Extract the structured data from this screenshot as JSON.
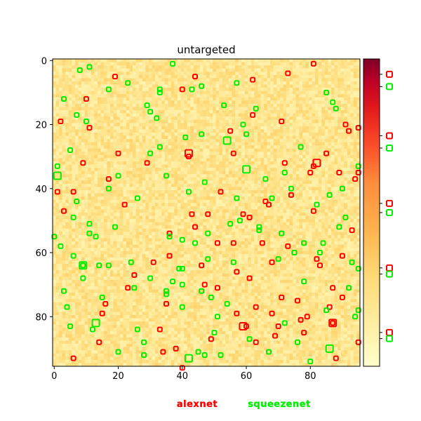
{
  "chart_data": {
    "type": "heatmap",
    "title": "untargeted",
    "grid_size": 96,
    "xlim": [
      0,
      96
    ],
    "ylim": [
      96,
      0
    ],
    "x_ticks": [
      0,
      20,
      40,
      60,
      80
    ],
    "y_ticks": [
      0,
      20,
      40,
      60,
      80
    ],
    "background_colormap": "YlOrRd",
    "grid": false,
    "colorbar": {
      "ticks_visible": true,
      "tick_labels_visible": false
    },
    "series": [
      {
        "name": "alexnet",
        "color": "#ff0000",
        "markers": [
          [
            2,
            19
          ],
          [
            1,
            41
          ],
          [
            6,
            41
          ],
          [
            3,
            47
          ],
          [
            9,
            32
          ],
          [
            10,
            12
          ],
          [
            11,
            21
          ],
          [
            6,
            93
          ],
          [
            15,
            79
          ],
          [
            16,
            76
          ],
          [
            17,
            37
          ],
          [
            19,
            5
          ],
          [
            20,
            29
          ],
          [
            22,
            45
          ],
          [
            23,
            71
          ],
          [
            25,
            67
          ],
          [
            29,
            32
          ],
          [
            31,
            63
          ],
          [
            33,
            84
          ],
          [
            34,
            91
          ],
          [
            35,
            76
          ],
          [
            36,
            61
          ],
          [
            40,
            9
          ],
          [
            42,
            30
          ],
          [
            43,
            48
          ],
          [
            44,
            52
          ],
          [
            46,
            64
          ],
          [
            47,
            70
          ],
          [
            48,
            48
          ],
          [
            49,
            87
          ],
          [
            51,
            57
          ],
          [
            52,
            41
          ],
          [
            55,
            22
          ],
          [
            56,
            29
          ],
          [
            56,
            57
          ],
          [
            57,
            66
          ],
          [
            59,
            48
          ],
          [
            61,
            49
          ],
          [
            61,
            68
          ],
          [
            62,
            17
          ],
          [
            63,
            77
          ],
          [
            63,
            88
          ],
          [
            65,
            57
          ],
          [
            66,
            44
          ],
          [
            67,
            45
          ],
          [
            68,
            63
          ],
          [
            68,
            79
          ],
          [
            69,
            86
          ],
          [
            70,
            83
          ],
          [
            71,
            19
          ],
          [
            72,
            32
          ],
          [
            73,
            4
          ],
          [
            74,
            42
          ],
          [
            75,
            60
          ],
          [
            76,
            75
          ],
          [
            77,
            81
          ],
          [
            78,
            85
          ],
          [
            79,
            80
          ],
          [
            80,
            35
          ],
          [
            81,
            1
          ],
          [
            81,
            47
          ],
          [
            81,
            33
          ],
          [
            83,
            64
          ],
          [
            85,
            29
          ],
          [
            86,
            77
          ],
          [
            87,
            71
          ],
          [
            88,
            93
          ],
          [
            89,
            35
          ],
          [
            90,
            61
          ],
          [
            90,
            74
          ],
          [
            91,
            20
          ],
          [
            92,
            22
          ],
          [
            93,
            53
          ],
          [
            94,
            37
          ],
          [
            95,
            21
          ],
          [
            95,
            35
          ],
          [
            95,
            88
          ],
          [
            73,
            58
          ],
          [
            60,
            83
          ],
          [
            87,
            82
          ],
          [
            44,
            5
          ],
          [
            38,
            90
          ],
          [
            14,
            88
          ],
          [
            57,
            79
          ],
          [
            62,
            6
          ],
          [
            71,
            74
          ],
          [
            82,
            62
          ],
          [
            51,
            71
          ],
          [
            36,
            54
          ],
          [
            40,
            96
          ]
        ]
      },
      {
        "name": "squeezenet",
        "color": "#00ee00",
        "markers": [
          [
            0,
            55
          ],
          [
            1,
            33
          ],
          [
            2,
            58
          ],
          [
            3,
            12
          ],
          [
            3,
            72
          ],
          [
            4,
            77
          ],
          [
            5,
            83
          ],
          [
            6,
            49
          ],
          [
            6,
            61
          ],
          [
            7,
            17
          ],
          [
            7,
            44
          ],
          [
            8,
            3
          ],
          [
            9,
            64
          ],
          [
            9,
            68
          ],
          [
            10,
            19
          ],
          [
            11,
            2
          ],
          [
            11,
            51
          ],
          [
            12,
            84
          ],
          [
            13,
            55
          ],
          [
            14,
            64
          ],
          [
            15,
            74
          ],
          [
            17,
            9
          ],
          [
            17,
            40
          ],
          [
            17,
            64
          ],
          [
            20,
            36
          ],
          [
            20,
            91
          ],
          [
            23,
            7
          ],
          [
            24,
            63
          ],
          [
            25,
            71
          ],
          [
            26,
            84
          ],
          [
            28,
            92
          ],
          [
            28,
            88
          ],
          [
            29,
            14
          ],
          [
            30,
            68
          ],
          [
            30,
            29
          ],
          [
            30,
            16
          ],
          [
            32,
            18
          ],
          [
            33,
            9
          ],
          [
            33,
            27
          ],
          [
            35,
            36
          ],
          [
            35,
            73
          ],
          [
            36,
            55
          ],
          [
            37,
            69
          ],
          [
            37,
            1
          ],
          [
            39,
            65
          ],
          [
            40,
            56
          ],
          [
            40,
            70
          ],
          [
            40,
            77
          ],
          [
            41,
            24
          ],
          [
            43,
            9
          ],
          [
            44,
            57
          ],
          [
            45,
            91
          ],
          [
            46,
            8
          ],
          [
            46,
            23
          ],
          [
            46,
            72
          ],
          [
            47,
            38
          ],
          [
            48,
            54
          ],
          [
            48,
            62
          ],
          [
            49,
            74
          ],
          [
            50,
            85
          ],
          [
            51,
            80
          ],
          [
            52,
            92
          ],
          [
            53,
            14
          ],
          [
            54,
            76
          ],
          [
            55,
            51
          ],
          [
            56,
            63
          ],
          [
            57,
            7
          ],
          [
            57,
            43
          ],
          [
            58,
            50
          ],
          [
            59,
            20
          ],
          [
            60,
            23
          ],
          [
            61,
            87
          ],
          [
            63,
            15
          ],
          [
            64,
            53
          ],
          [
            66,
            37
          ],
          [
            67,
            91
          ],
          [
            68,
            43
          ],
          [
            70,
            62
          ],
          [
            71,
            54
          ],
          [
            72,
            82
          ],
          [
            74,
            40
          ],
          [
            75,
            60
          ],
          [
            76,
            88
          ],
          [
            77,
            27
          ],
          [
            78,
            57
          ],
          [
            78,
            69
          ],
          [
            80,
            94
          ],
          [
            82,
            45
          ],
          [
            83,
            60
          ],
          [
            84,
            57
          ],
          [
            85,
            10
          ],
          [
            85,
            78
          ],
          [
            86,
            42
          ],
          [
            87,
            13
          ],
          [
            88,
            15
          ],
          [
            89,
            52
          ],
          [
            90,
            40
          ],
          [
            91,
            49
          ],
          [
            92,
            71
          ],
          [
            94,
            80
          ],
          [
            95,
            33
          ],
          [
            95,
            65
          ],
          [
            95,
            78
          ],
          [
            93,
            63
          ],
          [
            26,
            43
          ],
          [
            47,
            92
          ],
          [
            11,
            54
          ],
          [
            64,
            52
          ],
          [
            5,
            28
          ],
          [
            42,
            41
          ],
          [
            35,
            72
          ],
          [
            72,
            35
          ],
          [
            40,
            65
          ],
          [
            33,
            10
          ],
          [
            19,
            52
          ]
        ]
      }
    ],
    "large_markers": [
      {
        "series": "alexnet",
        "x": 42,
        "y": 29
      },
      {
        "series": "alexnet",
        "x": 59,
        "y": 83
      },
      {
        "series": "alexnet",
        "x": 82,
        "y": 32
      },
      {
        "series": "alexnet",
        "x": 87,
        "y": 82
      },
      {
        "series": "squeezenet",
        "x": 1,
        "y": 36
      },
      {
        "series": "squeezenet",
        "x": 9,
        "y": 64
      },
      {
        "series": "squeezenet",
        "x": 13,
        "y": 82
      },
      {
        "series": "squeezenet",
        "x": 42,
        "y": 93
      },
      {
        "series": "squeezenet",
        "x": 54,
        "y": 25
      },
      {
        "series": "squeezenet",
        "x": 60,
        "y": 34
      },
      {
        "series": "squeezenet",
        "x": 86,
        "y": 90
      }
    ],
    "colorbar_markers": [
      {
        "series": "alexnet",
        "level": 0.95
      },
      {
        "series": "squeezenet",
        "level": 0.91
      },
      {
        "series": "alexnet",
        "level": 0.75
      },
      {
        "series": "squeezenet",
        "level": 0.71
      },
      {
        "series": "alexnet",
        "level": 0.53
      },
      {
        "series": "squeezenet",
        "level": 0.5
      },
      {
        "series": "alexnet",
        "level": 0.32
      },
      {
        "series": "squeezenet",
        "level": 0.3
      },
      {
        "series": "alexnet",
        "level": 0.11
      },
      {
        "series": "squeezenet",
        "level": 0.09
      }
    ],
    "legend": {
      "placement": "bottom-center",
      "entries": [
        {
          "label": "alexnet",
          "color": "#ff0000"
        },
        {
          "label": "squeezenet",
          "color": "#00ee00"
        }
      ]
    }
  }
}
